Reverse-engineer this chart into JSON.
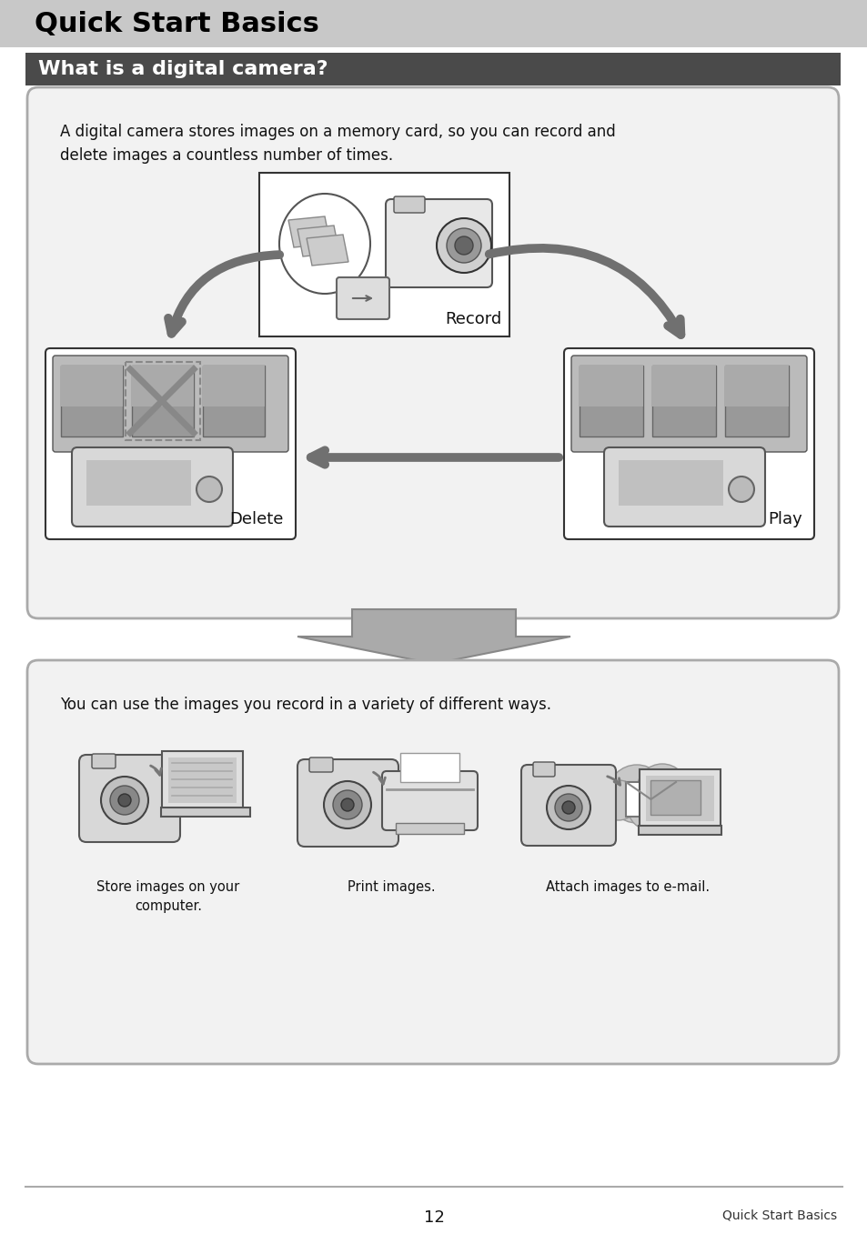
{
  "page_bg": "#ffffff",
  "header_bg": "#c8c8c8",
  "header_text": "Quick Start Basics",
  "header_text_color": "#000000",
  "subheader_bg": "#4a4a4a",
  "subheader_text": "What is a digital camera?",
  "subheader_text_color": "#ffffff",
  "box1_text": "A digital camera stores images on a memory card, so you can record and\ndelete images a countless number of times.",
  "box1_bg": "#f2f2f2",
  "box1_border": "#aaaaaa",
  "record_label": "Record",
  "delete_label": "Delete",
  "play_label": "Play",
  "box2_text": "You can use the images you record in a variety of different ways.",
  "box2_bg": "#f2f2f2",
  "box2_border": "#aaaaaa",
  "caption1": "Store images on your\ncomputer.",
  "caption2": "Print images.",
  "caption3": "Attach images to e-mail.",
  "arrow_color": "#707070",
  "footer_line_color": "#aaaaaa",
  "page_number": "12",
  "footer_right": "Quick Start Basics",
  "font_size_header": 22,
  "font_size_subheader": 16,
  "font_size_body": 12,
  "font_size_label": 13,
  "font_size_footer": 10
}
